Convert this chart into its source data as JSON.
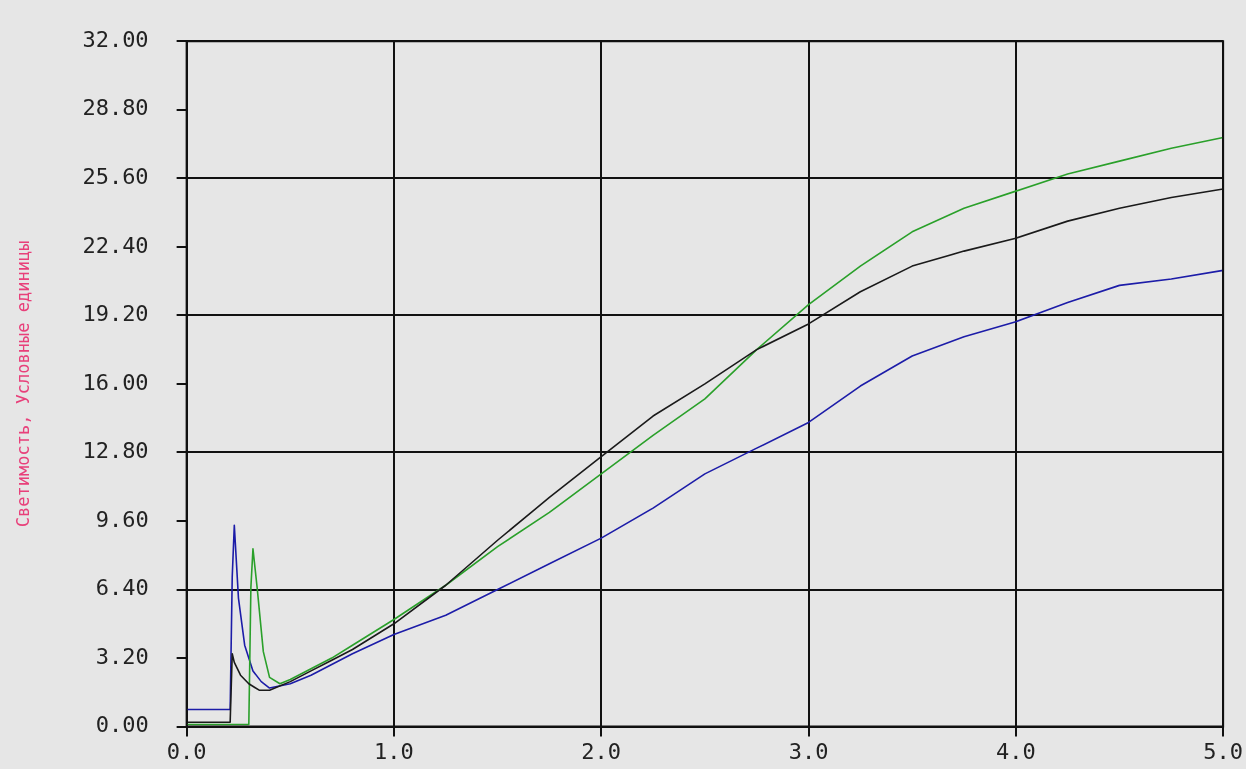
{
  "chart_data": {
    "type": "line",
    "ylabel": "Светимость, Условные единицы",
    "xlim": [
      0,
      5
    ],
    "xticks": [
      {
        "value": 0,
        "label": "0.0"
      },
      {
        "value": 1,
        "label": "1.0"
      },
      {
        "value": 2,
        "label": "2.0"
      },
      {
        "value": 3,
        "label": "3.0"
      },
      {
        "value": 4,
        "label": "4.0"
      },
      {
        "value": 5,
        "label": "5.0"
      }
    ],
    "ylim": [
      0,
      32
    ],
    "yticks": [
      {
        "value": 0,
        "label": "0.00"
      },
      {
        "value": 3.2,
        "label": "3.20"
      },
      {
        "value": 6.4,
        "label": "6.40"
      },
      {
        "value": 9.6,
        "label": "9.60"
      },
      {
        "value": 12.8,
        "label": "12.80"
      },
      {
        "value": 16,
        "label": "16.00"
      },
      {
        "value": 19.2,
        "label": "19.20"
      },
      {
        "value": 22.4,
        "label": "22.40"
      },
      {
        "value": 25.6,
        "label": "25.60"
      },
      {
        "value": 28.8,
        "label": "28.80"
      },
      {
        "value": 32,
        "label": "32.00"
      }
    ],
    "grid": true,
    "legend": false,
    "marker": "none",
    "line_style": "solid",
    "series": [
      {
        "color": "#1a1a1a",
        "x": [
          0,
          0.1,
          0.21,
          0.22,
          0.23,
          0.26,
          0.3,
          0.35,
          0.4,
          0.5,
          0.6,
          0.7,
          0.8,
          1,
          1.25,
          1.5,
          1.75,
          2,
          2.25,
          2.5,
          2.75,
          3,
          3.25,
          3.5,
          3.75,
          4,
          4.25,
          4.5,
          4.75,
          5
        ],
        "values": [
          0.2,
          0.2,
          0.2,
          3.4,
          3.0,
          2.4,
          2.0,
          1.7,
          1.7,
          2.1,
          2.6,
          3.1,
          3.6,
          4.8,
          6.6,
          8.7,
          10.7,
          12.6,
          14.5,
          16.0,
          17.6,
          18.8,
          20.3,
          21.5,
          22.2,
          22.8,
          23.6,
          24.2,
          24.7,
          25.1
        ]
      },
      {
        "color": "#2aa02a",
        "x": [
          0,
          0.1,
          0.2,
          0.3,
          0.31,
          0.32,
          0.34,
          0.37,
          0.4,
          0.45,
          0.5,
          0.6,
          0.7,
          0.8,
          1,
          1.25,
          1.5,
          1.75,
          2,
          2.25,
          2.5,
          2.75,
          3,
          3.25,
          3.5,
          3.75,
          4,
          4.25,
          4.5,
          4.75,
          5
        ],
        "values": [
          0.1,
          0.1,
          0.1,
          0.1,
          6.5,
          8.3,
          6.5,
          3.5,
          2.3,
          2.0,
          2.2,
          2.7,
          3.2,
          3.8,
          5.0,
          6.6,
          8.4,
          10.0,
          11.8,
          13.6,
          15.3,
          17.6,
          19.7,
          21.5,
          23.1,
          24.2,
          25.0,
          25.8,
          26.4,
          27.0,
          27.5
        ]
      },
      {
        "color": "#1c1ca8",
        "x": [
          0,
          0.1,
          0.21,
          0.22,
          0.23,
          0.25,
          0.28,
          0.32,
          0.36,
          0.4,
          0.5,
          0.6,
          0.7,
          0.8,
          1,
          1.25,
          1.5,
          1.75,
          2,
          2.25,
          2.5,
          2.75,
          3,
          3.25,
          3.5,
          3.75,
          4,
          4.25,
          4.5,
          4.75,
          5
        ],
        "values": [
          0.8,
          0.8,
          0.8,
          7.0,
          9.4,
          6.0,
          3.8,
          2.6,
          2.1,
          1.8,
          2.0,
          2.4,
          2.9,
          3.4,
          4.3,
          5.2,
          6.4,
          7.6,
          8.8,
          10.2,
          11.8,
          13.0,
          14.2,
          15.9,
          17.3,
          18.2,
          18.9,
          19.8,
          20.6,
          20.9,
          21.3
        ]
      }
    ]
  }
}
